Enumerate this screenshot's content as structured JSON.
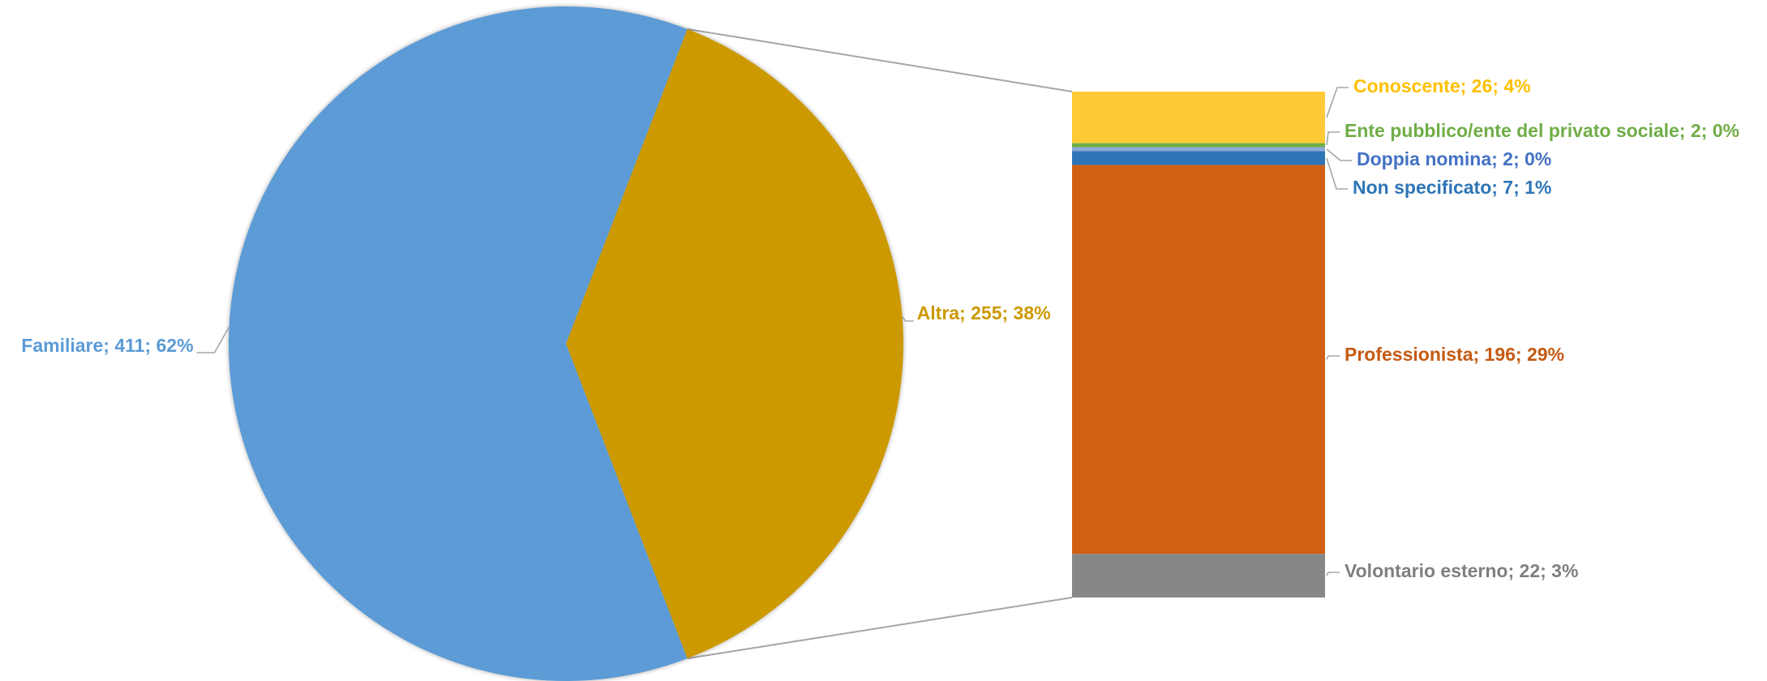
{
  "chart_data": {
    "type": "pie",
    "subtype": "bar-of-pie",
    "title": "",
    "pie": {
      "slices": [
        {
          "label": "Familiare",
          "value": 411,
          "percent": "62%",
          "color": "#5B9BD5",
          "text": "Familiare; 411; 62%"
        },
        {
          "label": "Altra",
          "value": 255,
          "percent": "38%",
          "color": "#CC9900",
          "text": "Altra; 255; 38%"
        }
      ]
    },
    "bar": {
      "breakdown_of": "Altra",
      "segments": [
        {
          "label": "Conoscente",
          "value": 26,
          "percent": "4%",
          "color": "#FFCA36",
          "text": "Conoscente; 26; 4%"
        },
        {
          "label": "Ente pubblico/ente del privato sociale",
          "value": 2,
          "percent": "0%",
          "color": "#70AD47",
          "text": "Ente pubblico/ente del privato sociale; 2; 0%"
        },
        {
          "label": "Doppia nomina",
          "value": 2,
          "percent": "0%",
          "color": "#8FAADC",
          "text": "Doppia nomina; 2; 0%"
        },
        {
          "label": "Non specificato",
          "value": 7,
          "percent": "1%",
          "color": "#2E75B6",
          "text": "Non specificato; 7; 1%"
        },
        {
          "label": "Professionista",
          "value": 196,
          "percent": "29%",
          "color": "#D26012",
          "text": "Professionista; 196; 29%"
        },
        {
          "label": "Volontario esterno",
          "value": 22,
          "percent": "3%",
          "color": "#878787",
          "text": "Volontario esterno; 22; 3%"
        }
      ]
    },
    "label_colors": {
      "Familiare": "#5B9BD5",
      "Altra": "#CC9900",
      "Conoscente": "#FFC000",
      "Ente pubblico/ente del privato sociale": "#70AD47",
      "Doppia nomina": "#4472C4",
      "Non specificato": "#2E75B6",
      "Professionista": "#C55A11",
      "Volontario esterno": "#7F7F7F"
    },
    "legend": "none",
    "grid": false
  }
}
